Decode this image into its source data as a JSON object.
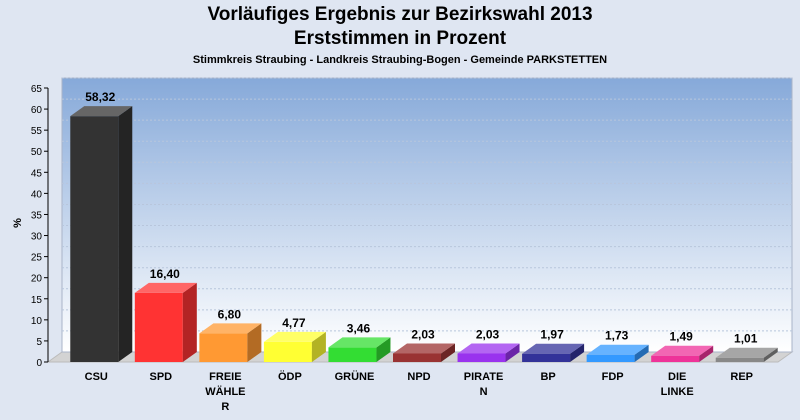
{
  "header": {
    "title": "Vorläufiges Ergebnis zur Bezirkswahl 2013",
    "subtitle": "Erststimmen in Prozent",
    "region": "Stimmkreis Straubing - Landkreis Straubing-Bogen - Gemeinde PARKSTETTEN"
  },
  "chart_data": {
    "type": "bar",
    "title": "Vorläufiges Ergebnis zur Bezirkswahl 2013",
    "subtitle": "Erststimmen in Prozent",
    "xlabel": "",
    "ylabel": "%",
    "ylim": [
      0,
      65
    ],
    "yticks": [
      0,
      5,
      10,
      15,
      20,
      25,
      30,
      35,
      40,
      45,
      50,
      55,
      60,
      65
    ],
    "grid": true,
    "categories": [
      [
        "CSU"
      ],
      [
        "SPD"
      ],
      [
        "FREIE",
        "WÄHLE",
        "R"
      ],
      [
        "ÖDP"
      ],
      [
        "GRÜNE"
      ],
      [
        "NPD"
      ],
      [
        "PIRATE",
        "N"
      ],
      [
        "BP"
      ],
      [
        "FDP"
      ],
      [
        "DIE",
        "LINKE"
      ],
      [
        "REP"
      ]
    ],
    "values": [
      58.32,
      16.4,
      6.8,
      4.77,
      3.46,
      2.03,
      2.03,
      1.97,
      1.73,
      1.49,
      1.01
    ],
    "value_labels": [
      "58,32",
      "16,40",
      "6,80",
      "4,77",
      "3,46",
      "2,03",
      "2,03",
      "1,97",
      "1,73",
      "1,49",
      "1,01"
    ],
    "colors": [
      "#333333",
      "#ff3333",
      "#ff9933",
      "#ffff33",
      "#33dd33",
      "#993333",
      "#9933ee",
      "#333399",
      "#3399ff",
      "#ee3399",
      "#888888"
    ]
  }
}
